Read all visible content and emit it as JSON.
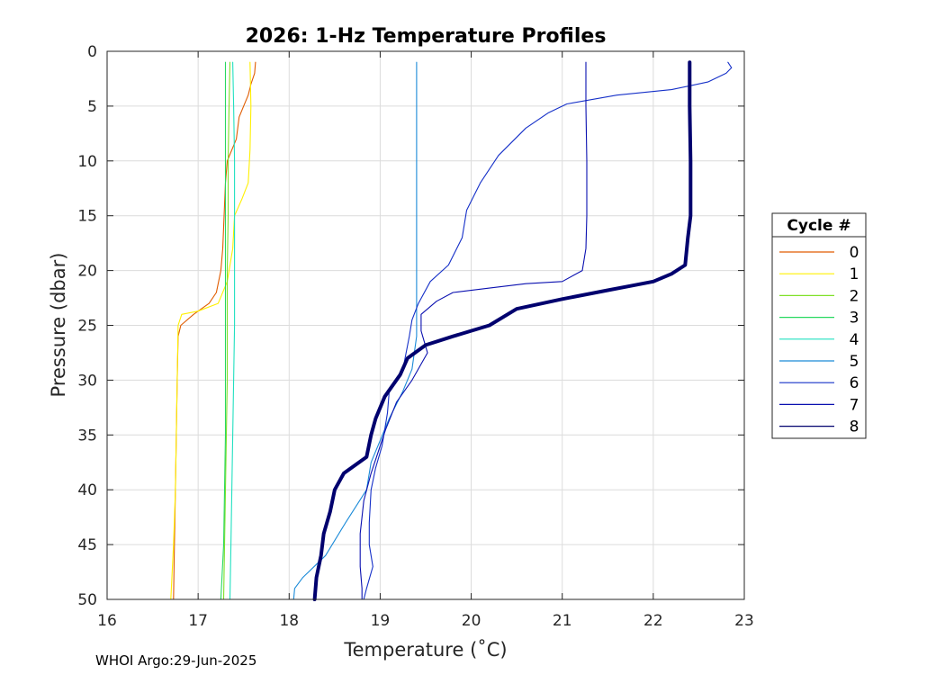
{
  "chart_data": {
    "type": "line",
    "title": "2026: 1-Hz Temperature Profiles",
    "xlabel": "Temperature (˚C)",
    "ylabel": "Pressure (dbar)",
    "xlim": [
      16,
      23
    ],
    "ylim": [
      0,
      50
    ],
    "y_reversed": true,
    "grid": true,
    "xticks": [
      16,
      17,
      18,
      19,
      20,
      21,
      22,
      23
    ],
    "yticks": [
      0,
      5,
      10,
      15,
      20,
      25,
      30,
      35,
      40,
      45,
      50
    ],
    "legend": {
      "title": "Cycle #",
      "placement": "outside-right"
    },
    "series": [
      {
        "name": "0",
        "color": "#e05c00",
        "points": [
          [
            17.63,
            1
          ],
          [
            17.62,
            2
          ],
          [
            17.58,
            3
          ],
          [
            17.55,
            4
          ],
          [
            17.5,
            5
          ],
          [
            17.45,
            6
          ],
          [
            17.42,
            8
          ],
          [
            17.32,
            10
          ],
          [
            17.3,
            12
          ],
          [
            17.29,
            14
          ],
          [
            17.28,
            16
          ],
          [
            17.27,
            18
          ],
          [
            17.25,
            20
          ],
          [
            17.2,
            22
          ],
          [
            17.12,
            23
          ],
          [
            16.95,
            24
          ],
          [
            16.81,
            25
          ],
          [
            16.78,
            26
          ],
          [
            16.77,
            30
          ],
          [
            16.76,
            35
          ],
          [
            16.75,
            40
          ],
          [
            16.74,
            45
          ],
          [
            16.73,
            50
          ]
        ]
      },
      {
        "name": "1",
        "color": "#fff000",
        "points": [
          [
            17.57,
            1
          ],
          [
            17.58,
            5
          ],
          [
            17.57,
            9
          ],
          [
            17.55,
            12
          ],
          [
            17.48,
            13.5
          ],
          [
            17.4,
            15
          ],
          [
            17.38,
            18
          ],
          [
            17.32,
            21
          ],
          [
            17.22,
            23
          ],
          [
            17.0,
            23.7
          ],
          [
            16.82,
            24
          ],
          [
            16.78,
            25
          ],
          [
            16.77,
            30
          ],
          [
            16.76,
            35
          ],
          [
            16.75,
            40
          ],
          [
            16.73,
            45
          ],
          [
            16.7,
            50
          ]
        ]
      },
      {
        "name": "2",
        "color": "#7fe028",
        "points": [
          [
            17.35,
            1
          ],
          [
            17.34,
            5
          ],
          [
            17.33,
            10
          ],
          [
            17.33,
            15
          ],
          [
            17.32,
            20
          ],
          [
            17.32,
            25
          ],
          [
            17.32,
            30
          ],
          [
            17.31,
            35
          ],
          [
            17.3,
            40
          ],
          [
            17.29,
            45
          ],
          [
            17.28,
            50
          ]
        ]
      },
      {
        "name": "3",
        "color": "#28d860",
        "points": [
          [
            17.3,
            1
          ],
          [
            17.3,
            5
          ],
          [
            17.3,
            10
          ],
          [
            17.3,
            15
          ],
          [
            17.3,
            20
          ],
          [
            17.3,
            25
          ],
          [
            17.3,
            30
          ],
          [
            17.3,
            35
          ],
          [
            17.29,
            40
          ],
          [
            17.28,
            45
          ],
          [
            17.25,
            50
          ]
        ]
      },
      {
        "name": "4",
        "color": "#20e0c0",
        "points": [
          [
            17.38,
            1
          ],
          [
            17.39,
            5
          ],
          [
            17.4,
            10
          ],
          [
            17.4,
            15
          ],
          [
            17.4,
            20
          ],
          [
            17.4,
            25
          ],
          [
            17.39,
            30
          ],
          [
            17.38,
            35
          ],
          [
            17.37,
            40
          ],
          [
            17.36,
            45
          ],
          [
            17.35,
            50
          ]
        ]
      },
      {
        "name": "5",
        "color": "#1a8ad8",
        "points": [
          [
            19.4,
            1
          ],
          [
            19.4,
            5
          ],
          [
            19.4,
            10
          ],
          [
            19.4,
            15
          ],
          [
            19.4,
            20
          ],
          [
            19.4,
            26
          ],
          [
            19.35,
            29
          ],
          [
            19.25,
            31
          ],
          [
            19.1,
            33.5
          ],
          [
            19.0,
            35.5
          ],
          [
            18.9,
            37.5
          ],
          [
            18.85,
            40
          ],
          [
            18.62,
            43
          ],
          [
            18.4,
            46
          ],
          [
            18.15,
            48
          ],
          [
            18.06,
            49
          ],
          [
            18.05,
            50
          ]
        ]
      },
      {
        "name": "6",
        "color": "#1530c8",
        "points": [
          [
            22.82,
            1
          ],
          [
            22.86,
            1.5
          ],
          [
            22.8,
            2
          ],
          [
            22.6,
            2.8
          ],
          [
            22.2,
            3.5
          ],
          [
            21.6,
            4
          ],
          [
            21.05,
            4.8
          ],
          [
            20.85,
            5.6
          ],
          [
            20.6,
            7
          ],
          [
            20.3,
            9.5
          ],
          [
            20.1,
            12
          ],
          [
            19.95,
            14.5
          ],
          [
            19.9,
            17
          ],
          [
            19.75,
            19.5
          ],
          [
            19.55,
            21
          ],
          [
            19.42,
            23
          ],
          [
            19.35,
            24.5
          ],
          [
            19.32,
            26
          ],
          [
            19.25,
            29
          ],
          [
            19.1,
            31
          ],
          [
            19.08,
            33
          ],
          [
            19.02,
            36
          ],
          [
            18.95,
            38
          ],
          [
            18.9,
            40
          ],
          [
            18.88,
            43
          ],
          [
            18.88,
            45
          ],
          [
            18.92,
            47
          ],
          [
            18.85,
            49
          ],
          [
            18.82,
            50
          ]
        ]
      },
      {
        "name": "7",
        "color": "#0a10b0",
        "points": [
          [
            21.26,
            1
          ],
          [
            21.26,
            5
          ],
          [
            21.27,
            10
          ],
          [
            21.27,
            15
          ],
          [
            21.26,
            18
          ],
          [
            21.22,
            20
          ],
          [
            21.0,
            21
          ],
          [
            20.6,
            21.2
          ],
          [
            20.2,
            21.6
          ],
          [
            19.8,
            22
          ],
          [
            19.62,
            22.8
          ],
          [
            19.45,
            24
          ],
          [
            19.45,
            25.5
          ],
          [
            19.52,
            27.5
          ],
          [
            19.35,
            30
          ],
          [
            19.18,
            32
          ],
          [
            19.06,
            34.5
          ],
          [
            18.98,
            36.5
          ],
          [
            18.9,
            38.5
          ],
          [
            18.82,
            41
          ],
          [
            18.78,
            44
          ],
          [
            18.78,
            47
          ],
          [
            18.8,
            49
          ],
          [
            18.8,
            50
          ]
        ]
      },
      {
        "name": "8",
        "color": "#00006e",
        "points": [
          [
            22.4,
            1
          ],
          [
            22.4,
            5
          ],
          [
            22.41,
            10
          ],
          [
            22.41,
            15
          ],
          [
            22.38,
            17
          ],
          [
            22.35,
            19.5
          ],
          [
            22.2,
            20.3
          ],
          [
            22.0,
            21
          ],
          [
            21.75,
            21.4
          ],
          [
            21.5,
            21.8
          ],
          [
            21.0,
            22.6
          ],
          [
            20.5,
            23.5
          ],
          [
            20.2,
            25
          ],
          [
            19.8,
            26
          ],
          [
            19.5,
            26.8
          ],
          [
            19.3,
            28
          ],
          [
            19.22,
            29.5
          ],
          [
            19.05,
            31.5
          ],
          [
            18.95,
            33.5
          ],
          [
            18.9,
            35
          ],
          [
            18.85,
            37
          ],
          [
            18.6,
            38.5
          ],
          [
            18.5,
            40
          ],
          [
            18.45,
            42
          ],
          [
            18.38,
            44
          ],
          [
            18.35,
            46
          ],
          [
            18.3,
            48
          ],
          [
            18.28,
            50
          ]
        ]
      }
    ]
  },
  "footer": {
    "text": "WHOI Argo:29-Jun-2025"
  }
}
